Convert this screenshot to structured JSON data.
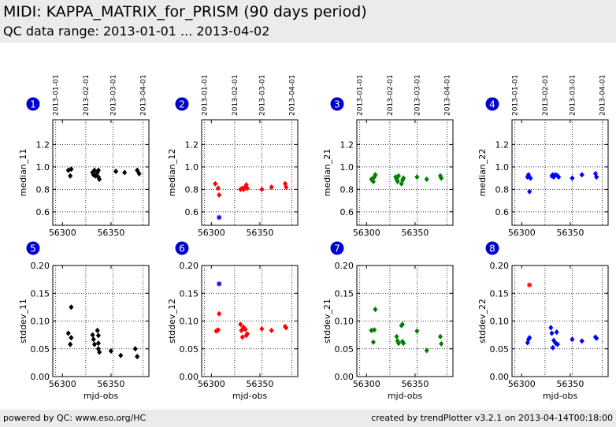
{
  "header": {
    "title": "MIDI: KAPPA_MATRIX_for_PRISM (90 days period)",
    "subtitle": "QC data range: 2013-01-01 ... 2013-04-02"
  },
  "footer": {
    "left": "powered by QC: www.eso.org/HC",
    "right": "created by trendPlotter v3.2.1 on 2013-04-14T00:18:00"
  },
  "colors": {
    "black": "#000000",
    "red": "#ff0000",
    "green": "#008000",
    "blue": "#0000ff",
    "badge": "#0000cc"
  },
  "chart_data": [
    {
      "type": "scatter",
      "panel": "1",
      "ylabel": "median_11",
      "xlabel": "",
      "color": "black",
      "xlim": [
        56290,
        56389
      ],
      "ylim": [
        0.48,
        1.42
      ],
      "yticks": [
        0.6,
        0.8,
        1.0,
        1.2
      ],
      "xticks": [
        56300,
        56350
      ],
      "top_ticks": [
        "2013-01-01",
        "2013-02-01",
        "2013-03-01",
        "2013-04-01"
      ],
      "points": [
        [
          56306,
          0.97
        ],
        [
          56308,
          0.92
        ],
        [
          56309,
          0.98
        ],
        [
          56331,
          0.95
        ],
        [
          56332,
          0.93
        ],
        [
          56333,
          0.97
        ],
        [
          56334,
          0.92
        ],
        [
          56336,
          0.95
        ],
        [
          56337,
          0.97
        ],
        [
          56337,
          0.91
        ],
        [
          56338,
          0.89
        ],
        [
          56355,
          0.96
        ],
        [
          56364,
          0.95
        ],
        [
          56377,
          0.97
        ],
        [
          56379,
          0.94
        ]
      ],
      "outliers": []
    },
    {
      "type": "scatter",
      "panel": "2",
      "ylabel": "median_12",
      "xlabel": "",
      "color": "red",
      "xlim": [
        56290,
        56389
      ],
      "ylim": [
        0.48,
        1.42
      ],
      "yticks": [
        0.6,
        0.8,
        1.0,
        1.2
      ],
      "xticks": [
        56300,
        56350
      ],
      "top_ticks": [
        "2013-01-01",
        "2013-02-01",
        "2013-03-01",
        "2013-04-01"
      ],
      "points": [
        [
          56304,
          0.85
        ],
        [
          56307,
          0.81
        ],
        [
          56308,
          0.75
        ],
        [
          56330,
          0.8
        ],
        [
          56332,
          0.81
        ],
        [
          56333,
          0.8
        ],
        [
          56334,
          0.81
        ],
        [
          56336,
          0.84
        ],
        [
          56337,
          0.81
        ],
        [
          56352,
          0.8
        ],
        [
          56362,
          0.82
        ],
        [
          56376,
          0.85
        ],
        [
          56377,
          0.82
        ]
      ],
      "outliers": [
        {
          "x": 56308,
          "y": 0.55,
          "color": "blue"
        }
      ]
    },
    {
      "type": "scatter",
      "panel": "3",
      "ylabel": "median_21",
      "xlabel": "",
      "color": "green",
      "xlim": [
        56290,
        56389
      ],
      "ylim": [
        0.48,
        1.42
      ],
      "yticks": [
        0.6,
        0.8,
        1.0,
        1.2
      ],
      "xticks": [
        56300,
        56350
      ],
      "top_ticks": [
        "2013-01-01",
        "2013-02-01",
        "2013-03-01",
        "2013-04-01"
      ],
      "points": [
        [
          56305,
          0.89
        ],
        [
          56307,
          0.87
        ],
        [
          56308,
          0.91
        ],
        [
          56309,
          0.93
        ],
        [
          56330,
          0.91
        ],
        [
          56331,
          0.89
        ],
        [
          56332,
          0.87
        ],
        [
          56333,
          0.92
        ],
        [
          56336,
          0.85
        ],
        [
          56337,
          0.88
        ],
        [
          56338,
          0.9
        ],
        [
          56352,
          0.91
        ],
        [
          56362,
          0.89
        ],
        [
          56376,
          0.92
        ],
        [
          56377,
          0.9
        ]
      ],
      "outliers": []
    },
    {
      "type": "scatter",
      "panel": "4",
      "ylabel": "median_22",
      "xlabel": "",
      "color": "blue",
      "xlim": [
        56290,
        56389
      ],
      "ylim": [
        0.48,
        1.42
      ],
      "yticks": [
        0.6,
        0.8,
        1.0,
        1.2
      ],
      "xticks": [
        56300,
        56350
      ],
      "top_ticks": [
        "2013-01-01",
        "2013-02-01",
        "2013-03-01",
        "2013-04-01"
      ],
      "points": [
        [
          56306,
          0.91
        ],
        [
          56307,
          0.93
        ],
        [
          56308,
          0.78
        ],
        [
          56309,
          0.9
        ],
        [
          56331,
          0.92
        ],
        [
          56332,
          0.93
        ],
        [
          56333,
          0.91
        ],
        [
          56335,
          0.93
        ],
        [
          56337,
          0.92
        ],
        [
          56338,
          0.91
        ],
        [
          56352,
          0.9
        ],
        [
          56362,
          0.93
        ],
        [
          56376,
          0.94
        ],
        [
          56377,
          0.91
        ]
      ],
      "outliers": []
    },
    {
      "type": "scatter",
      "panel": "5",
      "ylabel": "stddev_11",
      "xlabel": "mjd-obs",
      "color": "black",
      "xlim": [
        56290,
        56389
      ],
      "ylim": [
        0.0,
        0.2
      ],
      "yticks": [
        0.0,
        0.05,
        0.1,
        0.15,
        0.2
      ],
      "xticks": [
        56300,
        56350
      ],
      "top_ticks": [],
      "points": [
        [
          56306,
          0.078
        ],
        [
          56308,
          0.058
        ],
        [
          56309,
          0.125
        ],
        [
          56309,
          0.07
        ],
        [
          56331,
          0.075
        ],
        [
          56332,
          0.067
        ],
        [
          56333,
          0.058
        ],
        [
          56336,
          0.083
        ],
        [
          56337,
          0.074
        ],
        [
          56337,
          0.06
        ],
        [
          56337,
          0.05
        ],
        [
          56338,
          0.044
        ],
        [
          56350,
          0.046
        ],
        [
          56360,
          0.038
        ],
        [
          56375,
          0.05
        ],
        [
          56377,
          0.036
        ]
      ],
      "outliers": []
    },
    {
      "type": "scatter",
      "panel": "6",
      "ylabel": "stddev_12",
      "xlabel": "mjd-obs",
      "color": "red",
      "xlim": [
        56290,
        56389
      ],
      "ylim": [
        0.0,
        0.2
      ],
      "yticks": [
        0.0,
        0.05,
        0.1,
        0.15,
        0.2
      ],
      "xticks": [
        56300,
        56350
      ],
      "top_ticks": [],
      "points": [
        [
          56305,
          0.082
        ],
        [
          56307,
          0.084
        ],
        [
          56308,
          0.113
        ],
        [
          56330,
          0.094
        ],
        [
          56331,
          0.083
        ],
        [
          56332,
          0.071
        ],
        [
          56333,
          0.089
        ],
        [
          56335,
          0.085
        ],
        [
          56336,
          0.074
        ],
        [
          56337,
          0.077
        ],
        [
          56352,
          0.086
        ],
        [
          56362,
          0.083
        ],
        [
          56376,
          0.09
        ],
        [
          56377,
          0.088
        ]
      ],
      "outliers": [
        {
          "x": 56308,
          "y": 0.167,
          "color": "blue"
        }
      ]
    },
    {
      "type": "scatter",
      "panel": "7",
      "ylabel": "stddev_21",
      "xlabel": "mjd-obs",
      "color": "green",
      "xlim": [
        56290,
        56389
      ],
      "ylim": [
        0.0,
        0.2
      ],
      "yticks": [
        0.0,
        0.05,
        0.1,
        0.15,
        0.2
      ],
      "xticks": [
        56300,
        56350
      ],
      "top_ticks": [],
      "points": [
        [
          56305,
          0.083
        ],
        [
          56307,
          0.062
        ],
        [
          56308,
          0.084
        ],
        [
          56309,
          0.121
        ],
        [
          56331,
          0.072
        ],
        [
          56332,
          0.064
        ],
        [
          56333,
          0.06
        ],
        [
          56336,
          0.092
        ],
        [
          56337,
          0.094
        ],
        [
          56337,
          0.063
        ],
        [
          56338,
          0.06
        ],
        [
          56352,
          0.082
        ],
        [
          56362,
          0.047
        ],
        [
          56376,
          0.072
        ],
        [
          56377,
          0.059
        ]
      ],
      "outliers": []
    },
    {
      "type": "scatter",
      "panel": "8",
      "ylabel": "stddev_22",
      "xlabel": "mjd-obs",
      "color": "blue",
      "xlim": [
        56290,
        56389
      ],
      "ylim": [
        0.0,
        0.2
      ],
      "yticks": [
        0.0,
        0.05,
        0.1,
        0.15,
        0.2
      ],
      "xticks": [
        56300,
        56350
      ],
      "top_ticks": [],
      "points": [
        [
          56306,
          0.061
        ],
        [
          56307,
          0.067
        ],
        [
          56308,
          0.07
        ],
        [
          56330,
          0.088
        ],
        [
          56331,
          0.078
        ],
        [
          56332,
          0.052
        ],
        [
          56333,
          0.065
        ],
        [
          56335,
          0.06
        ],
        [
          56336,
          0.08
        ],
        [
          56337,
          0.058
        ],
        [
          56352,
          0.067
        ],
        [
          56362,
          0.064
        ],
        [
          56376,
          0.071
        ],
        [
          56377,
          0.069
        ]
      ],
      "outliers": [
        {
          "x": 56308,
          "y": 0.165,
          "color": "red"
        }
      ]
    }
  ]
}
